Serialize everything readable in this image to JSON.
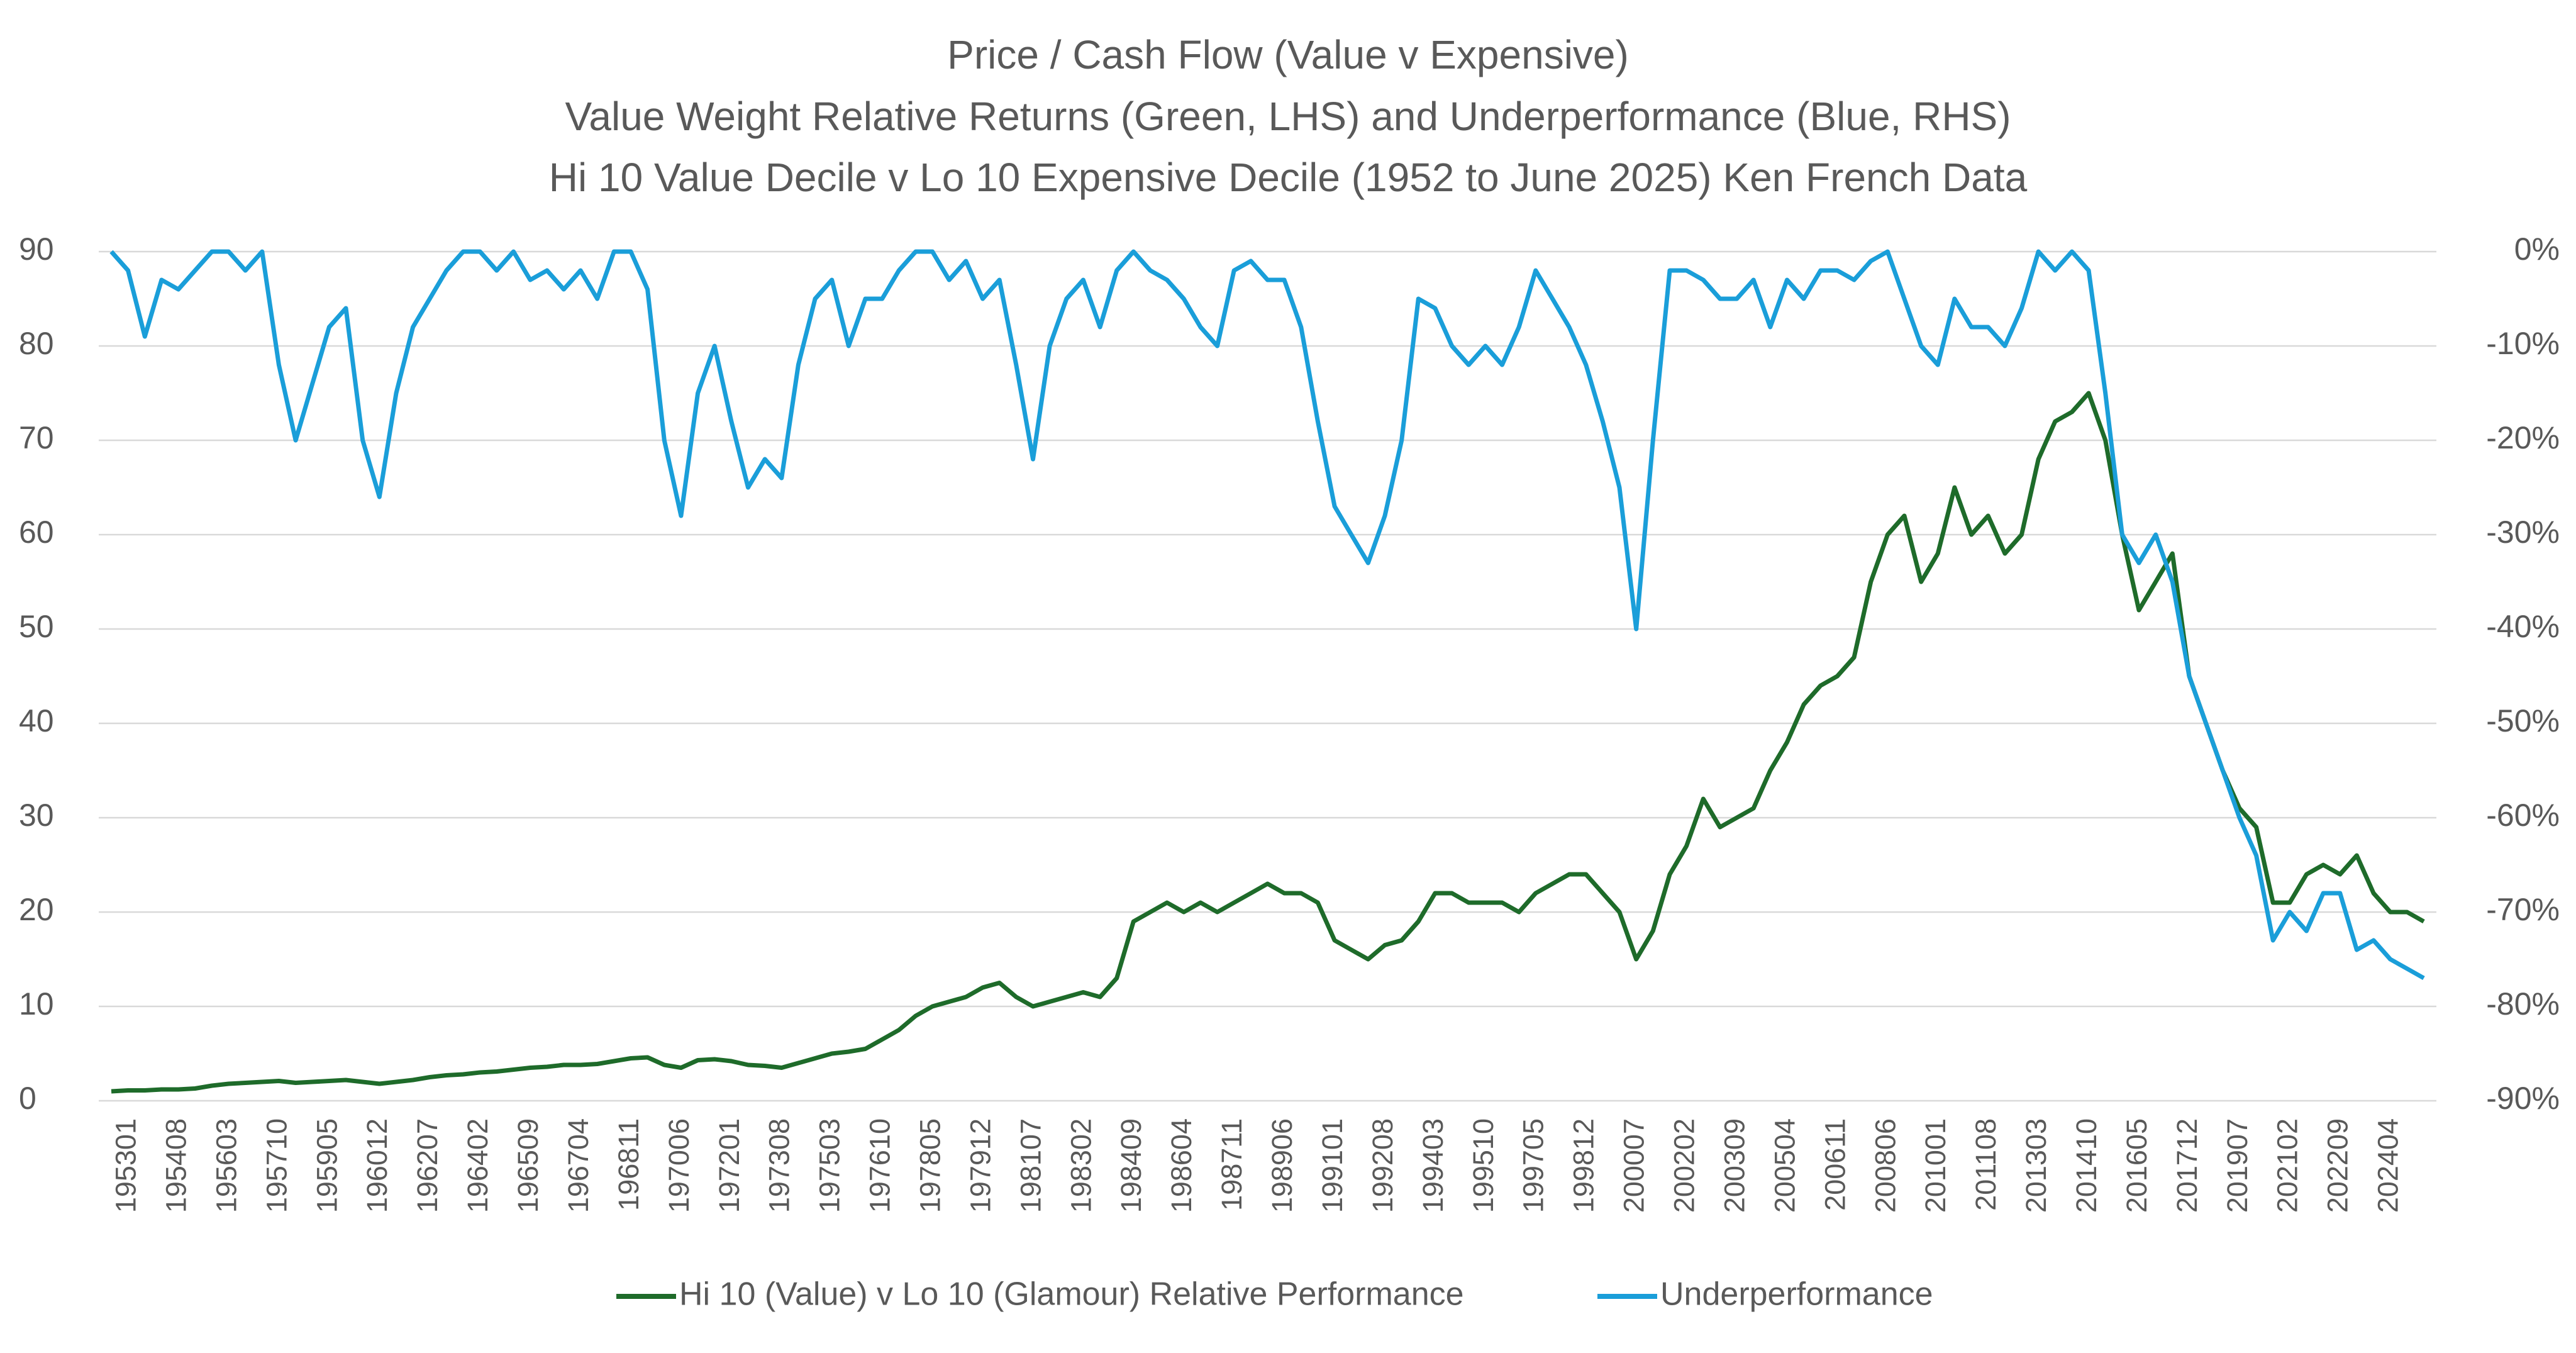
{
  "chart_data": {
    "type": "line",
    "title": "Price / Cash Flow (Value v Expensive)",
    "subtitle": [
      "Value Weight Relative Returns (Green, LHS) and Underperformance (Blue, RHS)",
      "Hi 10 Value Decile v Lo 10 Expensive Decile (1952 to June 2025) Ken French Data"
    ],
    "categories": [
      null,
      "195301",
      null,
      null,
      "195408",
      null,
      null,
      "195603",
      null,
      null,
      "195710",
      null,
      null,
      "195905",
      null,
      null,
      "196012",
      null,
      null,
      "196207",
      null,
      null,
      "196402",
      null,
      null,
      "196509",
      null,
      null,
      "196704",
      null,
      null,
      "196811",
      null,
      null,
      "197006",
      null,
      null,
      "197201",
      null,
      null,
      "197308",
      null,
      null,
      "197503",
      null,
      null,
      "197610",
      null,
      null,
      "197805",
      null,
      null,
      "197912",
      null,
      null,
      "198107",
      null,
      null,
      "198302",
      null,
      null,
      "198409",
      null,
      null,
      "198604",
      null,
      null,
      "198711",
      null,
      null,
      "198906",
      null,
      null,
      "199101",
      null,
      null,
      "199208",
      null,
      null,
      "199403",
      null,
      null,
      "199510",
      null,
      null,
      "199705",
      null,
      null,
      "199812",
      null,
      null,
      "200007",
      null,
      null,
      "200202",
      null,
      null,
      "200309",
      null,
      null,
      "200504",
      null,
      null,
      "200611",
      null,
      null,
      "200806",
      null,
      null,
      "201001",
      null,
      null,
      "201108",
      null,
      null,
      "201303",
      null,
      null,
      "201410",
      null,
      null,
      "201605",
      null,
      null,
      "201712",
      null,
      null,
      "201907",
      null,
      null,
      "202102",
      null,
      null,
      "202209",
      null,
      null,
      "202404",
      null,
      null
    ],
    "series": [
      {
        "name": "Hi 10 (Value) v Lo 10 (Glamour) Relative Performance",
        "color": "#1e6b2a",
        "axis": "y",
        "values": [
          1.0,
          1.1,
          1.1,
          1.2,
          1.2,
          1.3,
          1.6,
          1.8,
          1.9,
          2.0,
          2.1,
          1.9,
          2.0,
          2.1,
          2.2,
          2.0,
          1.8,
          2.0,
          2.2,
          2.5,
          2.7,
          2.8,
          3.0,
          3.1,
          3.3,
          3.5,
          3.6,
          3.8,
          3.8,
          3.9,
          4.2,
          4.5,
          4.6,
          3.8,
          3.5,
          4.3,
          4.4,
          4.2,
          3.8,
          3.7,
          3.5,
          4.0,
          4.5,
          5.0,
          5.2,
          5.5,
          6.5,
          7.5,
          9.0,
          10,
          10.5,
          11,
          12,
          12.5,
          11,
          10,
          10.5,
          11,
          11.5,
          11,
          13,
          19,
          20,
          21,
          20,
          21,
          20,
          21,
          22,
          23,
          22,
          22,
          21,
          17,
          16,
          15,
          16.5,
          17,
          19,
          22,
          22,
          21,
          21,
          21,
          20,
          22,
          23,
          24,
          24,
          22,
          20,
          15,
          18,
          24,
          27,
          32,
          29,
          30,
          31,
          35,
          38,
          42,
          44,
          45,
          47,
          55,
          60,
          62,
          55,
          58,
          65,
          60,
          62,
          58,
          60,
          68,
          72,
          73,
          75,
          70,
          60,
          52,
          55,
          58,
          45,
          40,
          35,
          31,
          29,
          21,
          21,
          24,
          25,
          24,
          26,
          22,
          20,
          20,
          19
        ]
      },
      {
        "name": "Underperformance",
        "color": "#1a9ed9",
        "axis": "y2",
        "values": [
          0,
          -2,
          -9,
          -3,
          -4,
          -2,
          0,
          0,
          -2,
          0,
          -12,
          -20,
          -14,
          -8,
          -6,
          -20,
          -26,
          -15,
          -8,
          -5,
          -2,
          0,
          0,
          -2,
          0,
          -3,
          -2,
          -4,
          -2,
          -5,
          0,
          0,
          -4,
          -20,
          -28,
          -15,
          -10,
          -18,
          -25,
          -22,
          -24,
          -12,
          -5,
          -3,
          -10,
          -5,
          -5,
          -2,
          0,
          0,
          -3,
          -1,
          -5,
          -3,
          -12,
          -22,
          -10,
          -5,
          -3,
          -8,
          -2,
          0,
          -2,
          -3,
          -5,
          -8,
          -10,
          -2,
          -1,
          -3,
          -3,
          -8,
          -18,
          -27,
          -30,
          -33,
          -28,
          -20,
          -5,
          -6,
          -10,
          -12,
          -10,
          -12,
          -8,
          -2,
          -5,
          -8,
          -12,
          -18,
          -25,
          -40,
          -20,
          -2,
          -2,
          -3,
          -5,
          -5,
          -3,
          -8,
          -3,
          -5,
          -2,
          -2,
          -3,
          -1,
          0,
          -5,
          -10,
          -12,
          -5,
          -8,
          -8,
          -10,
          -6,
          0,
          -2,
          0,
          -2,
          -15,
          -30,
          -33,
          -30,
          -35,
          -45,
          -50,
          -55,
          -60,
          -64,
          -73,
          -70,
          -72,
          -68,
          -68,
          -74,
          -73,
          -75,
          -76,
          -77
        ]
      }
    ],
    "ylim": [
      0,
      90
    ],
    "yticks": [
      0,
      10,
      20,
      30,
      40,
      50,
      60,
      70,
      80,
      90
    ],
    "y2lim": [
      -90,
      0
    ],
    "y2ticks": [
      {
        "value": -90,
        "label": "-90%"
      },
      {
        "value": -80,
        "label": "-80%"
      },
      {
        "value": -70,
        "label": "-70%"
      },
      {
        "value": -60,
        "label": "-60%"
      },
      {
        "value": -50,
        "label": "-50%"
      },
      {
        "value": -40,
        "label": "-40%"
      },
      {
        "value": -30,
        "label": "-30%"
      },
      {
        "value": -20,
        "label": "-20%"
      },
      {
        "value": -10,
        "label": "-10%"
      },
      {
        "value": 0,
        "label": "0%"
      }
    ],
    "grid": true,
    "legend": "bottom"
  }
}
